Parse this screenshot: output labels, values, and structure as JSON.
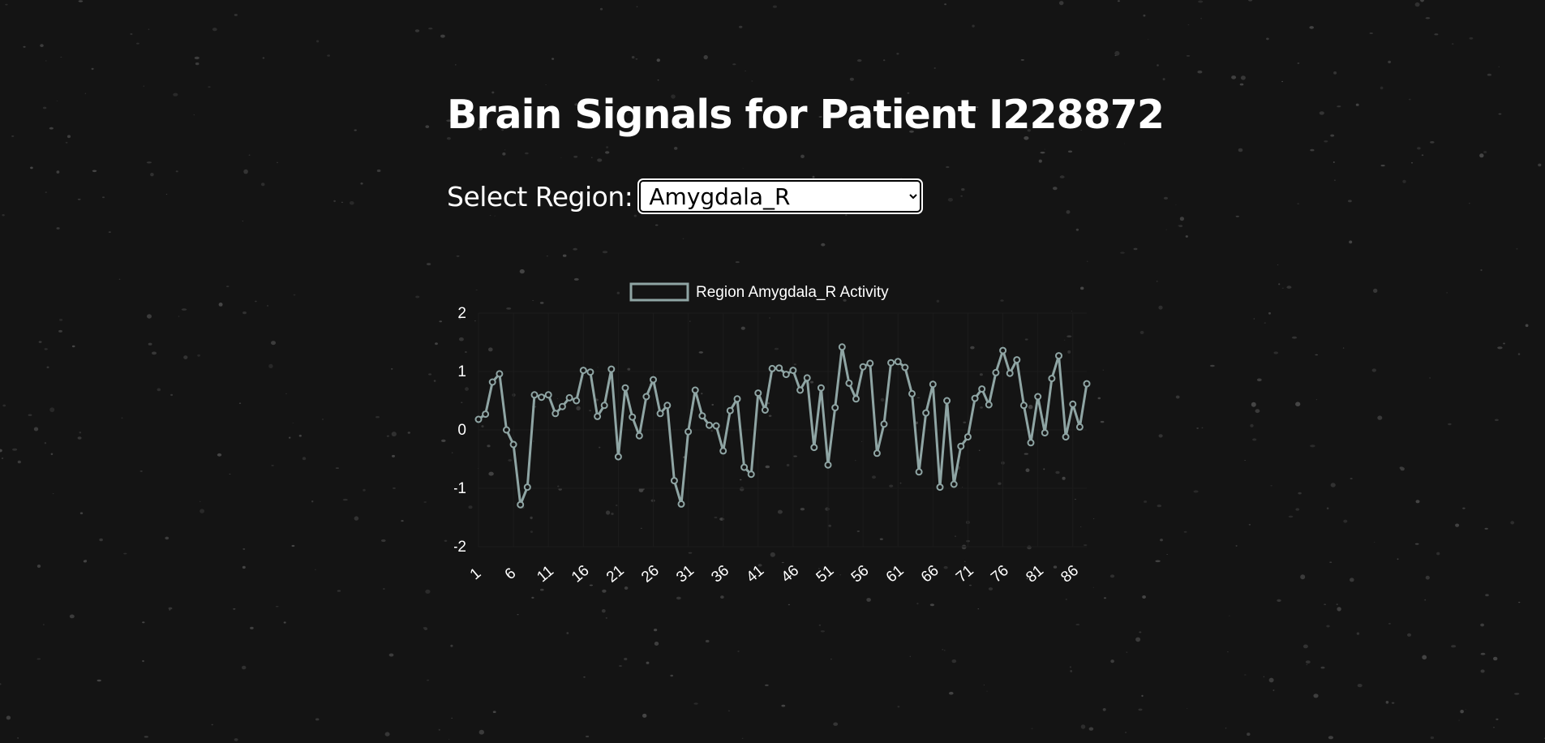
{
  "page": {
    "title": "Brain Signals for Patient I228872"
  },
  "region_select": {
    "label": "Select Region:",
    "selected": "Amygdala_R"
  },
  "colors": {
    "background": "#141414",
    "series_line": "#8fa5a4",
    "text": "#ffffff"
  },
  "chart_data": {
    "type": "line",
    "legend_position": "top",
    "series": [
      {
        "name": "Region Amygdala_R Activity",
        "values": [
          0.18,
          0.27,
          0.82,
          0.96,
          0.0,
          -0.25,
          -1.28,
          -0.98,
          0.6,
          0.56,
          0.6,
          0.28,
          0.4,
          0.55,
          0.5,
          1.02,
          0.99,
          0.23,
          0.42,
          1.04,
          -0.46,
          0.72,
          0.22,
          -0.1,
          0.57,
          0.86,
          0.28,
          0.42,
          -0.87,
          -1.27,
          -0.03,
          0.68,
          0.24,
          0.08,
          0.07,
          -0.36,
          0.33,
          0.53,
          -0.64,
          -0.76,
          0.63,
          0.34,
          1.05,
          1.06,
          0.95,
          1.02,
          0.68,
          0.89,
          -0.3,
          0.72,
          -0.6,
          0.38,
          1.42,
          0.8,
          0.53,
          1.08,
          1.14,
          -0.4,
          0.1,
          1.15,
          1.17,
          1.07,
          0.62,
          -0.72,
          0.29,
          0.78,
          -0.98,
          0.5,
          -0.93,
          -0.28,
          -0.12,
          0.54,
          0.7,
          0.43,
          0.98,
          1.36,
          0.97,
          1.2,
          0.42,
          -0.22,
          0.57,
          -0.05,
          0.88,
          1.27,
          -0.12,
          0.44,
          0.05,
          0.79
        ]
      }
    ],
    "x_tick_labels": [
      "1",
      "6",
      "11",
      "16",
      "21",
      "26",
      "31",
      "36",
      "41",
      "46",
      "51",
      "56",
      "61",
      "66",
      "71",
      "76",
      "81",
      "86"
    ],
    "y_tick_labels": [
      "2",
      "1",
      "0",
      "-1",
      "-2"
    ],
    "ylim": [
      -2,
      2
    ],
    "grid": true
  }
}
